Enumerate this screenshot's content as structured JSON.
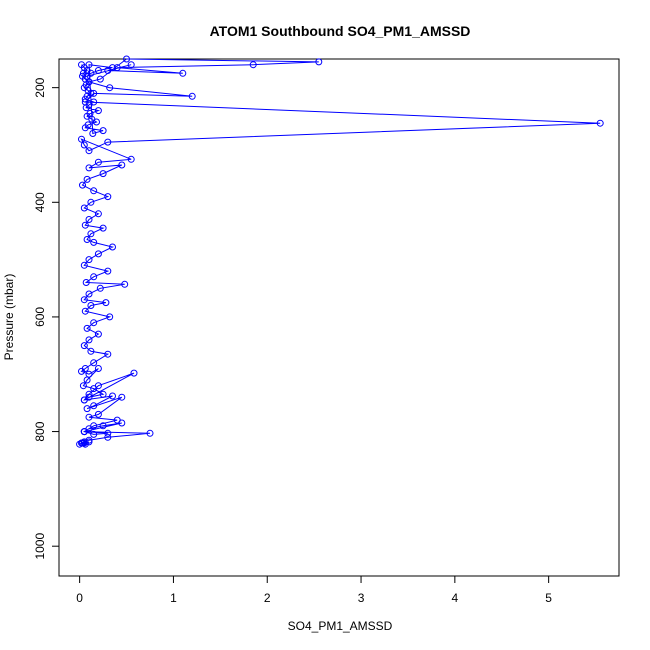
{
  "chart_data": {
    "type": "line",
    "title": "ATOM1 Southbound SO4_PM1_AMSSD",
    "xlabel": "SO4_PM1_AMSSD",
    "ylabel": "Pressure (mbar)",
    "xlim": [
      -0.22,
      5.75
    ],
    "ylim": [
      1052,
      150
    ],
    "y_reversed": true,
    "grid": false,
    "x_ticks": [
      0,
      1,
      2,
      3,
      4,
      5
    ],
    "y_ticks": [
      200,
      400,
      600,
      800,
      1000
    ],
    "series": [
      {
        "color": "#0000ff",
        "marker": "open-circle",
        "x": [
          0.02,
          0.05,
          0.08,
          0.04,
          0.03,
          0.06,
          0.1,
          0.07,
          0.05,
          0.09,
          0.12,
          0.08,
          0.06,
          0.15,
          0.1,
          0.07,
          0.2,
          0.11,
          0.08,
          0.13,
          0.18,
          0.09,
          0.06,
          0.25,
          0.14,
          0.1,
          0.35,
          0.2,
          0.12,
          0.08,
          0.55,
          0.3,
          1.1,
          0.4,
          1.85,
          2.55,
          0.5,
          0.22,
          0.1,
          0.32,
          1.2,
          0.15,
          0.06,
          5.55,
          0.3,
          0.1,
          0.05,
          0.02,
          0.55,
          0.2,
          0.1,
          0.45,
          0.25,
          0.08,
          0.03,
          0.15,
          0.3,
          0.12,
          0.05,
          0.2,
          0.1,
          0.06,
          0.25,
          0.12,
          0.08,
          0.15,
          0.35,
          0.2,
          0.1,
          0.05,
          0.3,
          0.15,
          0.07,
          0.48,
          0.22,
          0.1,
          0.05,
          0.28,
          0.12,
          0.06,
          0.32,
          0.15,
          0.08,
          0.2,
          0.1,
          0.05,
          0.12,
          0.3,
          0.15,
          0.06,
          0.02,
          0.1,
          0.2,
          0.08,
          0.04,
          0.15,
          0.25,
          0.1,
          0.05,
          0.58,
          0.2,
          0.1,
          0.05,
          0.35,
          0.15,
          0.08,
          0.45,
          0.2,
          0.1,
          0.4,
          0.15,
          0.05,
          0.45,
          0.25,
          0.1,
          0.05,
          0.3,
          0.15,
          0.05,
          0.75,
          0.3,
          0.1,
          0.05,
          0.02,
          0.0,
          0.05,
          0.1,
          0.06,
          0.03
        ],
        "y": [
          160,
          165,
          170,
          175,
          180,
          185,
          190,
          195,
          200,
          205,
          210,
          215,
          220,
          225,
          230,
          235,
          240,
          245,
          250,
          255,
          260,
          265,
          270,
          275,
          280,
          160,
          165,
          170,
          175,
          180,
          160,
          170,
          175,
          165,
          160,
          155,
          150,
          185,
          190,
          200,
          215,
          210,
          225,
          262,
          295,
          310,
          300,
          290,
          325,
          330,
          340,
          335,
          350,
          360,
          370,
          380,
          390,
          400,
          410,
          420,
          430,
          440,
          445,
          455,
          465,
          470,
          478,
          490,
          500,
          510,
          520,
          530,
          540,
          543,
          550,
          560,
          570,
          575,
          580,
          590,
          600,
          610,
          620,
          630,
          640,
          650,
          660,
          665,
          680,
          690,
          695,
          700,
          690,
          710,
          720,
          725,
          735,
          740,
          745,
          698,
          720,
          735,
          745,
          738,
          755,
          760,
          740,
          770,
          775,
          780,
          790,
          800,
          785,
          790,
          795,
          800,
          803,
          805,
          800,
          803,
          810,
          815,
          818,
          820,
          822,
          820,
          818,
          822,
          820
        ]
      }
    ]
  }
}
